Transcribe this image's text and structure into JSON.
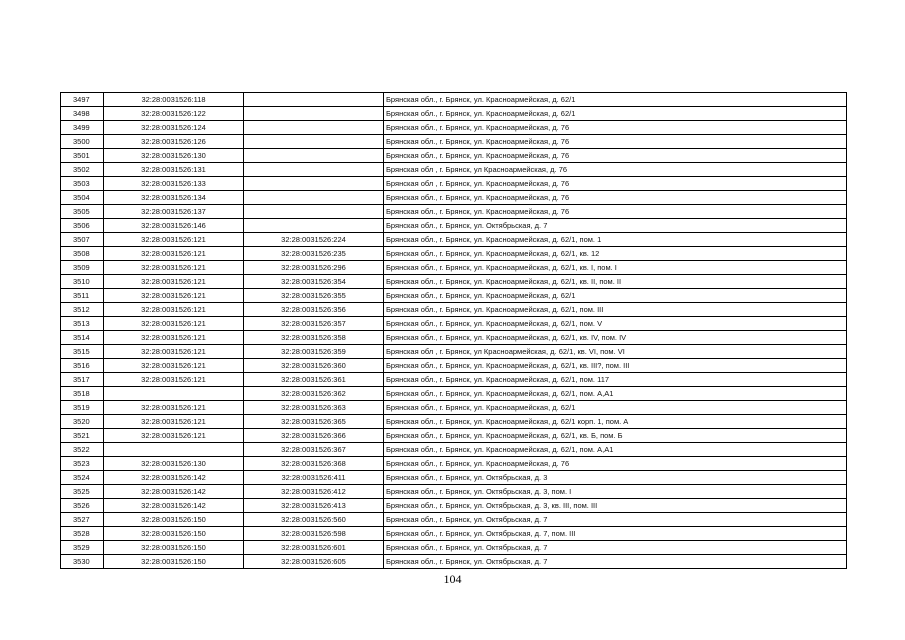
{
  "rows": [
    [
      "3497",
      "32:28:0031526:118",
      "",
      "Брянская обл., г. Брянск, ул. Красноармейская, д. 62/1"
    ],
    [
      "3498",
      "32:28:0031526:122",
      "",
      "Брянская обл., г. Брянск, ул. Красноармейская, д. 62/1"
    ],
    [
      "3499",
      "32:28:0031526:124",
      "",
      "Брянская обл., г. Брянск, ул. Красноармейская, д. 76"
    ],
    [
      "3500",
      "32:28:0031526:126",
      "",
      "Брянская обл., г. Брянск, ул. Красноармейская, д. 76"
    ],
    [
      "3501",
      "32:28:0031526:130",
      "",
      "Брянская обл., г. Брянск, ул. Красноармейская, д. 76"
    ],
    [
      "3502",
      "32:28:0031526:131",
      "",
      "Брянская обл , г. Брянск, ул Красноармейская, д. 76"
    ],
    [
      "3503",
      "32:28:0031526:133",
      "",
      "Брянская обл , г. Брянск, ул. Красноармейская, д. 76"
    ],
    [
      "3504",
      "32:28:0031526:134",
      "",
      "Брянская обл., г. Брянск, ул. Красноармейская, д. 76"
    ],
    [
      "3505",
      "32:28:0031526:137",
      "",
      "Брянская обл., г. Брянск, ул. Красноармейская, д. 76"
    ],
    [
      "3506",
      "32:28:0031526:146",
      "",
      "Брянская обл., г. Брянск, ул. Октябрьская, д. 7"
    ],
    [
      "3507",
      "32:28:0031526:121",
      "32:28:0031526:224",
      "Брянская обл., г. Брянск, ул. Красноармейская, д. 62/1, пом. 1"
    ],
    [
      "3508",
      "32:28:0031526:121",
      "32:28:0031526:235",
      "Брянская обл., г. Брянск, ул. Красноармейская, д. 62/1, кв. 12"
    ],
    [
      "3509",
      "32:28:0031526:121",
      "32:28:0031526:296",
      "Брянская обл., г. Брянск, ул. Красноармейская, д. 62/1, кв. I, пом. I"
    ],
    [
      "3510",
      "32:28:0031526:121",
      "32:28:0031526:354",
      "Брянская обл., г. Брянск, ул. Красноармейская, д. 62/1, кв. II, пом. II"
    ],
    [
      "3511",
      "32:28:0031526:121",
      "32:28:0031526:355",
      "Брянская обл., г. Брянск, ул. Красноармейская, д. 62/1"
    ],
    [
      "3512",
      "32:28:0031526:121",
      "32:28:0031526:356",
      "Брянская обл., г. Брянск, ул. Красноармейская, д. 62/1, пом. III"
    ],
    [
      "3513",
      "32:28:0031526:121",
      "32:28:0031526:357",
      "Брянская обл., г. Брянск, ул. Красноармейская, д. 62/1, пом. V"
    ],
    [
      "3514",
      "32:28:0031526:121",
      "32:28:0031526:358",
      "Брянская обл., г. Брянск, ул. Красноармейская, д. 62/1, кв. IV, пом. IV"
    ],
    [
      "3515",
      "32:28:0031526:121",
      "32:28:0031526:359",
      "Брянская обл , г. Брянск, ул Красноармейская, д. 62/1, кв. VI, пом. VI"
    ],
    [
      "3516",
      "32:28:0031526:121",
      "32:28:0031526:360",
      "Брянская обл., г. Брянск, ул. Красноармейская, д. 62/1, кв. III?, пом. III"
    ],
    [
      "3517",
      "32:28:0031526:121",
      "32:28:0031526:361",
      "Брянская обл., г. Брянск, ул. Красноармейская, д. 62/1, пом. 117"
    ],
    [
      "3518",
      "",
      "32:28:0031526:362",
      "Брянская обл., г. Брянск, ул. Красноармейская, д. 62/1, пом. А,А1"
    ],
    [
      "3519",
      "32:28:0031526:121",
      "32:28:0031526:363",
      "Брянская обл., г. Брянск, ул. Красноармейская, д. 62/1"
    ],
    [
      "3520",
      "32:28:0031526:121",
      "32:28:0031526:365",
      "Брянская обл., г. Брянск, ул. Красноармейская, д. 62/1 корп. 1, пом. А"
    ],
    [
      "3521",
      "32:28:0031526:121",
      "32:28:0031526:366",
      "Брянская обл., г. Брянск, ул. Красноармейская, д. 62/1, кв. Б, пом. Б"
    ],
    [
      "3522",
      "",
      "32:28:0031526:367",
      "Брянская обл., г. Брянск, ул. Красноармейская, д. 62/1, пом. А,А1"
    ],
    [
      "3523",
      "32:28:0031526:130",
      "32:28:0031526:368",
      "Брянская обл., г. Брянск, ул. Красноармейская, д. 76"
    ],
    [
      "3524",
      "32:28:0031526:142",
      "32:28:0031526:411",
      "Брянская обл., г. Брянск, ул. Октябрьская, д. 3"
    ],
    [
      "3525",
      "32:28:0031526:142",
      "32:28:0031526:412",
      "Брянская обл., г. Брянск, ул. Октябрьская, д. 3, пом. I"
    ],
    [
      "3526",
      "32:28:0031526:142",
      "32:28:0031526:413",
      "Брянская обл., г. Брянск, ул. Октябрьская, д. 3, кв. III, пом. III"
    ],
    [
      "3527",
      "32:28:0031526:150",
      "32:28:0031526:560",
      "Брянская обл., г. Брянск, ул. Октябрьская, д. 7"
    ],
    [
      "3528",
      "32:28:0031526:150",
      "32:28:0031526:598",
      "Брянская обл., г. Брянск, ул. Октябрьская, д. 7, пом. III"
    ],
    [
      "3529",
      "32:28:0031526:150",
      "32:28:0031526:601",
      "Брянская обл., г. Брянск, ул. Октябрьская, д. 7"
    ],
    [
      "3530",
      "32:28:0031526:150",
      "32:28:0031526:605",
      "Брянская обл., г. Брянск, ул. Октябрьская, д. 7"
    ]
  ],
  "page_number": "104"
}
